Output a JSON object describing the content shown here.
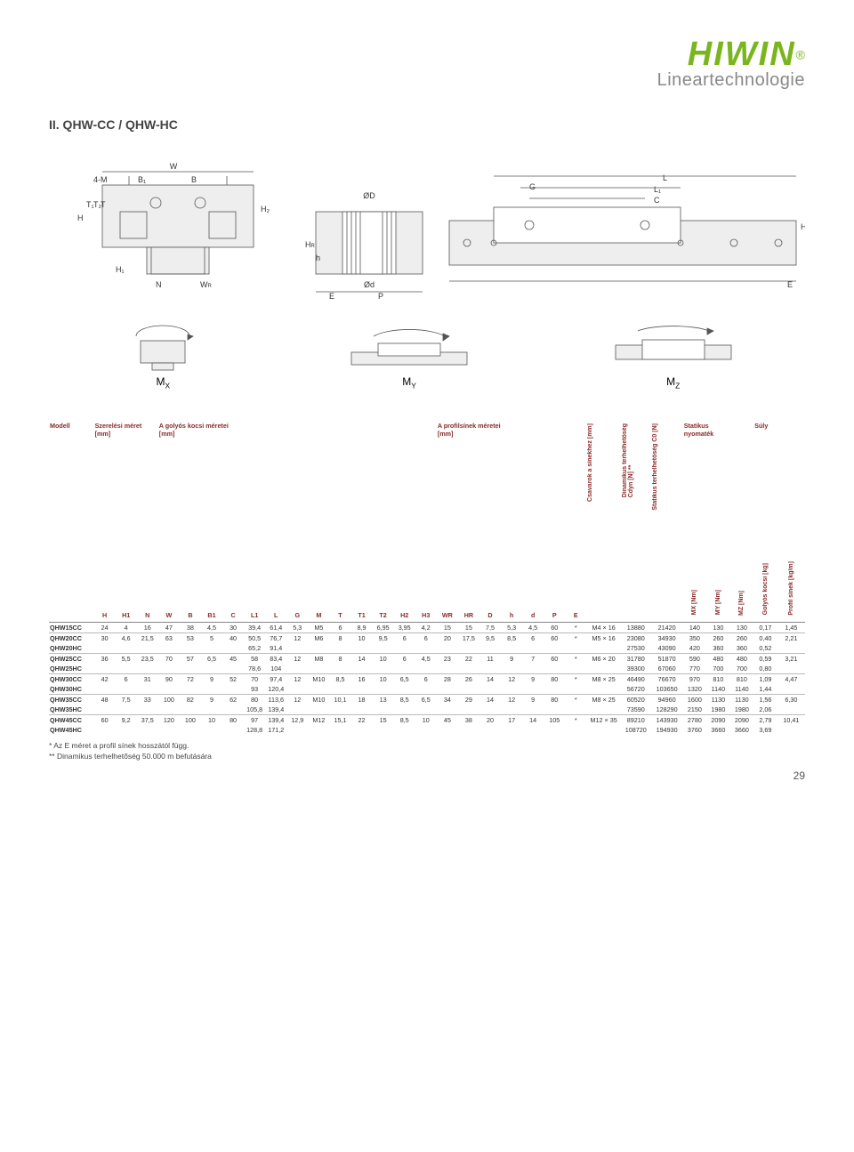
{
  "brand": {
    "name": "HIWIN",
    "color": "#7ab51d",
    "subtitle": "Lineartechnologie",
    "sub_color": "#888888"
  },
  "section_title": "II. QHW-CC / QHW-HC",
  "moment_labels": {
    "mx": "M",
    "my": "M",
    "mz": "M",
    "x": "X",
    "y": "Y",
    "z": "Z"
  },
  "group_headers": {
    "model": "Modell",
    "mount": "Szerelési méret",
    "mount_unit": "[mm]",
    "carriage": "A golyós kocsi méretei",
    "carriage_unit": "[mm]",
    "profile": "A profilsínek méretei",
    "profile_unit": "[mm]",
    "screw": "Csavarok a sínekhez [mm]",
    "cdyn": "Dinamikus terhelhetőség",
    "cdyn2": "Cdyn [N] **",
    "c0": "Statikus terhelhetőség C0 [N]",
    "static_moment": "Statikus",
    "static_moment2": "nyomaték",
    "weight": "Súly",
    "mx": "MX [Nm]",
    "my": "MY [Nm]",
    "mz": "MZ [Nm]",
    "wcar": "Golyós kocsi [kg]",
    "wrail": "Profil sínek [kg/m]"
  },
  "col_headers": [
    "H",
    "H1",
    "N",
    "W",
    "B",
    "B1",
    "C",
    "L1",
    "L",
    "G",
    "M",
    "T",
    "T1",
    "T2",
    "H2",
    "H3",
    "WR",
    "HR",
    "D",
    "h",
    "d",
    "P",
    "E"
  ],
  "rows": [
    {
      "model": "QHW15CC",
      "v": [
        "24",
        "4",
        "16",
        "47",
        "38",
        "4,5",
        "30",
        "39,4",
        "61,4",
        "5,3",
        "M5",
        "6",
        "8,9",
        "6,95",
        "3,95",
        "4,2",
        "15",
        "15",
        "7,5",
        "5,3",
        "4,5",
        "60",
        "*"
      ],
      "screw": "M4 × 16",
      "cdyn": "13880",
      "c0": "21420",
      "mx": "140",
      "my": "130",
      "mz": "130",
      "kg": "0,17",
      "kgm": "1,45"
    },
    {
      "model": "QHW20CC",
      "v": [
        "30",
        "4,6",
        "21,5",
        "63",
        "53",
        "5",
        "40",
        "50,5",
        "76,7",
        "12",
        "M6",
        "8",
        "10",
        "9,5",
        "6",
        "6",
        "20",
        "17,5",
        "9,5",
        "8,5",
        "6",
        "60",
        "*"
      ],
      "screw": "M5 × 16",
      "cdyn": "23080",
      "c0": "34930",
      "mx": "350",
      "my": "260",
      "mz": "260",
      "kg": "0,40",
      "kgm": "2,21"
    },
    {
      "model": "QHW20HC",
      "v": [
        "",
        "",
        "",
        "",
        "",
        "",
        "",
        "65,2",
        "91,4",
        "",
        "",
        "",
        "",
        "",
        "",
        "",
        "",
        "",
        "",
        "",
        "",
        "",
        ""
      ],
      "screw": "",
      "cdyn": "27530",
      "c0": "43090",
      "mx": "420",
      "my": "360",
      "mz": "360",
      "kg": "0,52",
      "kgm": ""
    },
    {
      "model": "QHW25CC",
      "v": [
        "36",
        "5,5",
        "23,5",
        "70",
        "57",
        "6,5",
        "45",
        "58",
        "83,4",
        "12",
        "M8",
        "8",
        "14",
        "10",
        "6",
        "4,5",
        "23",
        "22",
        "11",
        "9",
        "7",
        "60",
        "*"
      ],
      "screw": "M6 × 20",
      "cdyn": "31780",
      "c0": "51870",
      "mx": "590",
      "my": "480",
      "mz": "480",
      "kg": "0,59",
      "kgm": "3,21"
    },
    {
      "model": "QHW25HC",
      "v": [
        "",
        "",
        "",
        "",
        "",
        "",
        "",
        "78,6",
        "104",
        "",
        "",
        "",
        "",
        "",
        "",
        "",
        "",
        "",
        "",
        "",
        "",
        "",
        ""
      ],
      "screw": "",
      "cdyn": "39300",
      "c0": "67060",
      "mx": "770",
      "my": "700",
      "mz": "700",
      "kg": "0,80",
      "kgm": ""
    },
    {
      "model": "QHW30CC",
      "v": [
        "42",
        "6",
        "31",
        "90",
        "72",
        "9",
        "52",
        "70",
        "97,4",
        "12",
        "M10",
        "8,5",
        "16",
        "10",
        "6,5",
        "6",
        "28",
        "26",
        "14",
        "12",
        "9",
        "80",
        "*"
      ],
      "screw": "M8 × 25",
      "cdyn": "46490",
      "c0": "76670",
      "mx": "970",
      "my": "810",
      "mz": "810",
      "kg": "1,09",
      "kgm": "4,47"
    },
    {
      "model": "QHW30HC",
      "v": [
        "",
        "",
        "",
        "",
        "",
        "",
        "",
        "93",
        "120,4",
        "",
        "",
        "",
        "",
        "",
        "",
        "",
        "",
        "",
        "",
        "",
        "",
        "",
        ""
      ],
      "screw": "",
      "cdyn": "56720",
      "c0": "103650",
      "mx": "1320",
      "my": "1140",
      "mz": "1140",
      "kg": "1,44",
      "kgm": ""
    },
    {
      "model": "QHW35CC",
      "v": [
        "48",
        "7,5",
        "33",
        "100",
        "82",
        "9",
        "62",
        "80",
        "113,6",
        "12",
        "M10",
        "10,1",
        "18",
        "13",
        "8,5",
        "6,5",
        "34",
        "29",
        "14",
        "12",
        "9",
        "80",
        "*"
      ],
      "screw": "M8 × 25",
      "cdyn": "60520",
      "c0": "94960",
      "mx": "1600",
      "my": "1130",
      "mz": "1130",
      "kg": "1,56",
      "kgm": "6,30"
    },
    {
      "model": "QHW35HC",
      "v": [
        "",
        "",
        "",
        "",
        "",
        "",
        "",
        "105,8",
        "139,4",
        "",
        "",
        "",
        "",
        "",
        "",
        "",
        "",
        "",
        "",
        "",
        "",
        "",
        ""
      ],
      "screw": "",
      "cdyn": "73590",
      "c0": "128290",
      "mx": "2150",
      "my": "1980",
      "mz": "1980",
      "kg": "2,06",
      "kgm": ""
    },
    {
      "model": "QHW45CC",
      "v": [
        "60",
        "9,2",
        "37,5",
        "120",
        "100",
        "10",
        "80",
        "97",
        "139,4",
        "12,9",
        "M12",
        "15,1",
        "22",
        "15",
        "8,5",
        "10",
        "45",
        "38",
        "20",
        "17",
        "14",
        "105",
        "*"
      ],
      "screw": "M12 × 35",
      "cdyn": "89210",
      "c0": "143930",
      "mx": "2780",
      "my": "2090",
      "mz": "2090",
      "kg": "2,79",
      "kgm": "10,41"
    },
    {
      "model": "QHW45HC",
      "v": [
        "",
        "",
        "",
        "",
        "",
        "",
        "",
        "128,8",
        "171,2",
        "",
        "",
        "",
        "",
        "",
        "",
        "",
        "",
        "",
        "",
        "",
        "",
        "",
        ""
      ],
      "screw": "",
      "cdyn": "108720",
      "c0": "194930",
      "mx": "3760",
      "my": "3660",
      "mz": "3660",
      "kg": "3,69",
      "kgm": ""
    }
  ],
  "footnotes": {
    "a": "*   Az E méret a profil sínek hosszától függ.",
    "b": "** Dinamikus terhelhetőség 50.000 m befutására"
  },
  "header_color": "#8a2a2a",
  "page_number": "29",
  "diagram_labels": {
    "left": [
      "4-M",
      "B1",
      "B",
      "W",
      "H2",
      "T",
      "T1",
      "T2",
      "H",
      "H1",
      "N",
      "WR"
    ],
    "mid": [
      "ØD",
      "HR",
      "h",
      "Ød",
      "E",
      "P"
    ],
    "right": [
      "G",
      "L",
      "L1",
      "C",
      "H3",
      "E"
    ]
  }
}
